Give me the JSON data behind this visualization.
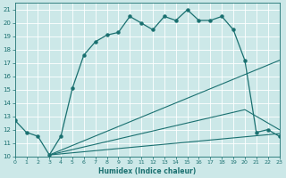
{
  "xlabel": "Humidex (Indice chaleur)",
  "bg_color": "#cce8e8",
  "grid_color": "#ffffff",
  "line_color": "#1a7070",
  "xlim": [
    0,
    23
  ],
  "ylim": [
    10,
    21.5
  ],
  "xticks": [
    0,
    1,
    2,
    3,
    4,
    5,
    6,
    7,
    8,
    9,
    10,
    11,
    12,
    13,
    14,
    15,
    16,
    17,
    18,
    19,
    20,
    21,
    22,
    23
  ],
  "yticks": [
    10,
    11,
    12,
    13,
    14,
    15,
    16,
    17,
    18,
    19,
    20,
    21
  ],
  "line1_x": [
    0,
    1,
    2,
    3,
    4,
    5,
    6,
    7,
    8,
    9,
    10,
    11,
    12,
    13,
    14,
    15,
    16,
    17,
    18,
    19,
    20,
    21,
    22,
    23
  ],
  "line1_y": [
    12.7,
    11.8,
    11.5,
    10.1,
    11.5,
    15.1,
    17.6,
    18.6,
    19.1,
    19.3,
    20.5,
    20.0,
    19.5,
    20.5,
    20.2,
    21.0,
    20.2,
    20.2,
    20.5,
    19.5,
    17.2,
    11.8,
    12.0,
    11.5
  ],
  "line2_x": [
    3,
    23
  ],
  "line2_y": [
    10.1,
    17.2
  ],
  "line3_x": [
    3,
    20,
    23
  ],
  "line3_y": [
    10.1,
    13.5,
    12.0
  ],
  "line4_x": [
    3,
    23
  ],
  "line4_y": [
    10.1,
    11.7
  ]
}
